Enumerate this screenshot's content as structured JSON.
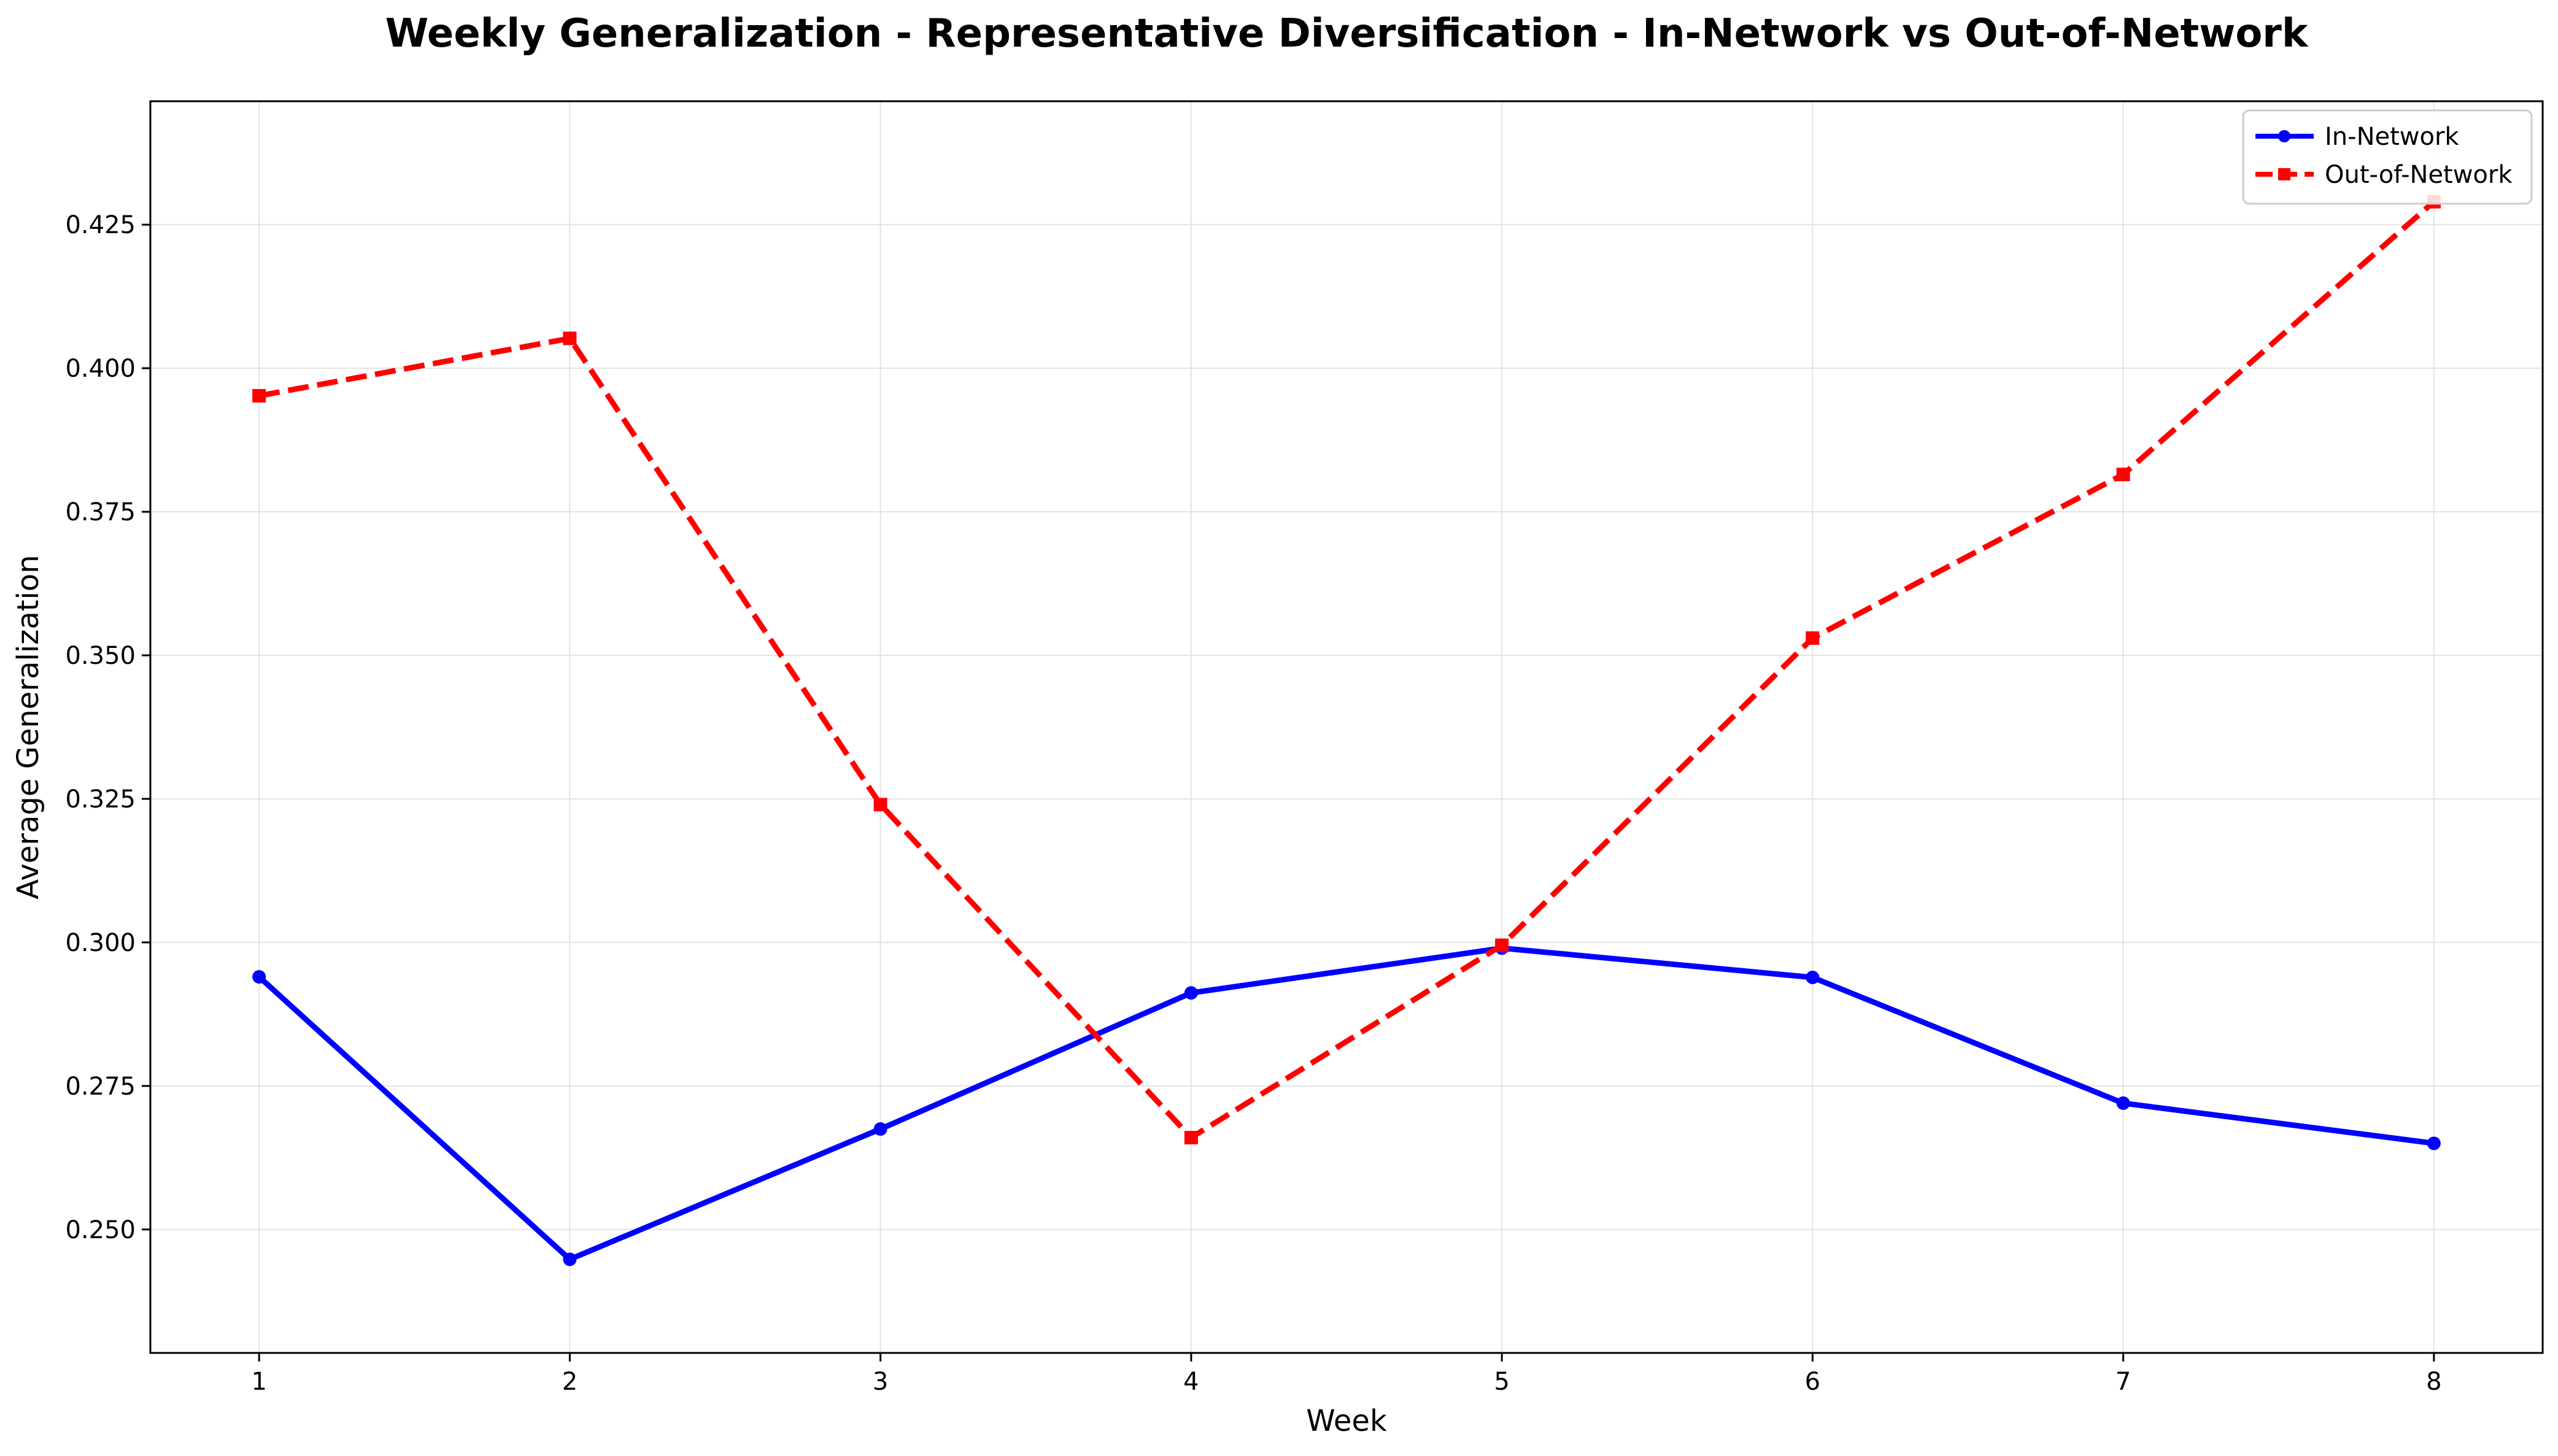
{
  "chart_data": {
    "type": "line",
    "title": "Weekly Generalization - Representative Diversification - In-Network vs Out-of-Network",
    "xlabel": "Week",
    "ylabel": "Average Generalization",
    "x": [
      1,
      2,
      3,
      4,
      5,
      6,
      7,
      8
    ],
    "xlim": [
      0.65,
      8.35
    ],
    "ylim": [
      0.2285,
      0.4465
    ],
    "yticks": [
      0.25,
      0.275,
      0.3,
      0.325,
      0.35,
      0.375,
      0.4,
      0.425
    ],
    "ytick_labels": [
      "0.250",
      "0.275",
      "0.300",
      "0.325",
      "0.350",
      "0.375",
      "0.400",
      "0.425"
    ],
    "xtick_labels": [
      "1",
      "2",
      "3",
      "4",
      "5",
      "6",
      "7",
      "8"
    ],
    "grid": true,
    "legend_position": "top-right",
    "series": [
      {
        "name": "In-Network",
        "color": "#0000ff",
        "line_style": "solid",
        "marker": "circle",
        "values": [
          0.294,
          0.2448,
          0.2675,
          0.2912,
          0.299,
          0.2939,
          0.272,
          0.265
        ]
      },
      {
        "name": "Out-of-Network",
        "color": "#ff0000",
        "line_style": "dashed",
        "marker": "square",
        "values": [
          0.3952,
          0.4052,
          0.324,
          0.266,
          0.2995,
          0.353,
          0.3815,
          0.429
        ]
      }
    ]
  }
}
